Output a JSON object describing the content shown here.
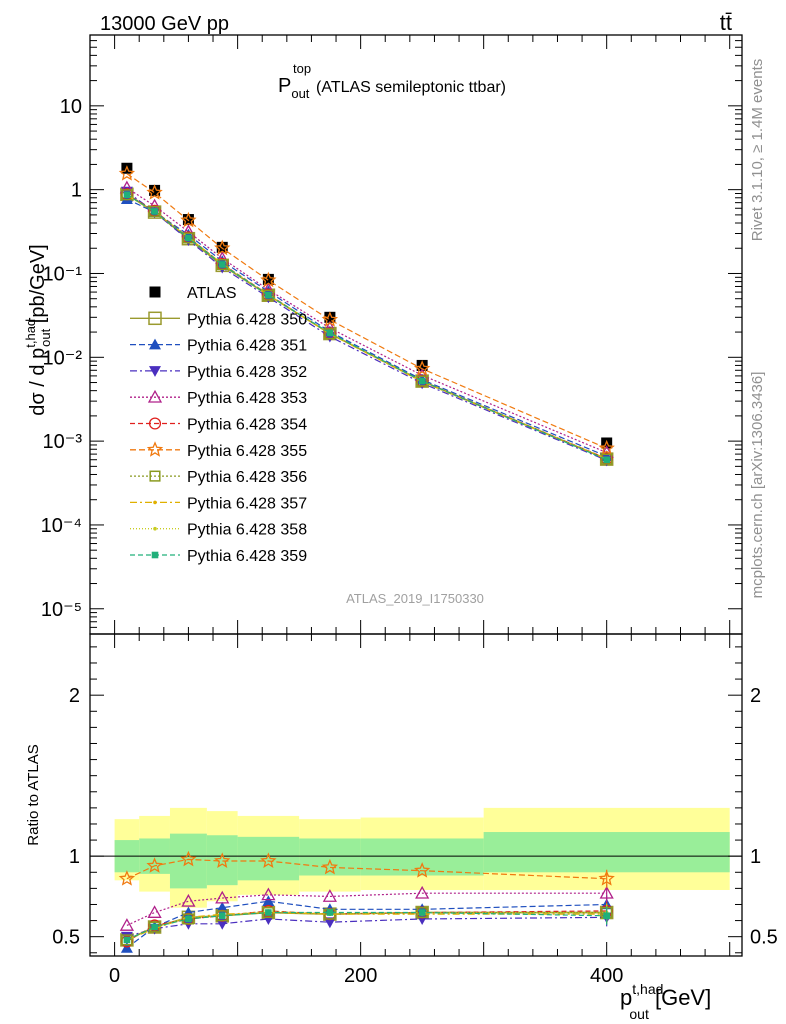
{
  "header": {
    "left": "13000 GeV pp",
    "right": "tt̄"
  },
  "side_texts": {
    "rivet": "Rivet 3.1.10, ≥ 1.4M events",
    "mcplots": "mcplots.cern.ch [arXiv:1306.3436]"
  },
  "watermark": "ATLAS_2019_I1750330",
  "chart_data": [
    {
      "panel": "main",
      "type": "scatter",
      "title": {
        "main": "P",
        "sup": "top",
        "sub": "out",
        "rest": " (ATLAS semileptonic ttbar)"
      },
      "ylabel": {
        "pre": "dσ / d p",
        "sup": "t,had",
        "sub": "out",
        "post": " [pb/GeV]"
      },
      "yscale": "log",
      "ylim": [
        5e-06,
        70
      ],
      "xlim": [
        -20,
        510
      ],
      "y_tick_labels": [
        "10",
        "1",
        "10⁻¹",
        "10⁻²",
        "10⁻³",
        "10⁻⁴",
        "10⁻⁵"
      ],
      "y_tick_values": [
        10,
        1,
        0.1,
        0.01,
        0.001,
        0.0001,
        1e-05
      ],
      "legend_position": "middle-left",
      "x": [
        10,
        32.5,
        60,
        87.5,
        125,
        175,
        250,
        400
      ],
      "x_edges": [
        0,
        20,
        45,
        75,
        100,
        150,
        200,
        300,
        500
      ],
      "series": [
        {
          "name": "ATLAS",
          "color": "#000000",
          "marker": "square-filled",
          "dash": "",
          "values": [
            1.8,
            0.98,
            0.44,
            0.205,
            0.085,
            0.03,
            0.008,
            0.00095
          ]
        },
        {
          "name": "Pythia 6.428 350",
          "color": "#9a9a2e",
          "marker": "square-open",
          "dash": "",
          "values": [
            0.88,
            0.54,
            0.26,
            0.125,
            0.055,
            0.0192,
            0.0052,
            0.00061
          ]
        },
        {
          "name": "Pythia 6.428 351",
          "color": "#1f4fbf",
          "marker": "triangle-up",
          "dash": "6,3",
          "values": [
            0.77,
            0.54,
            0.29,
            0.14,
            0.061,
            0.0202,
            0.0054,
            0.00066
          ]
        },
        {
          "name": "Pythia 6.428 352",
          "color": "#4a2fbf",
          "marker": "triangle-down",
          "dash": "7,3,2,3",
          "values": [
            0.95,
            0.54,
            0.25,
            0.118,
            0.052,
            0.0177,
            0.0049,
            0.00059
          ]
        },
        {
          "name": "Pythia 6.428 353",
          "color": "#b0208a",
          "marker": "triangle-open",
          "dash": "2,2",
          "values": [
            1.05,
            0.64,
            0.315,
            0.151,
            0.064,
            0.0223,
            0.0061,
            0.00073
          ]
        },
        {
          "name": "Pythia 6.428 354",
          "color": "#e0201e",
          "marker": "circle-open",
          "dash": "5,3",
          "values": [
            0.88,
            0.56,
            0.27,
            0.13,
            0.056,
            0.0192,
            0.0052,
            0.00062
          ]
        },
        {
          "name": "Pythia 6.428 355",
          "color": "#f07a10",
          "marker": "star-open",
          "dash": "6,3",
          "values": [
            1.55,
            0.92,
            0.43,
            0.2,
            0.083,
            0.028,
            0.0073,
            0.00082
          ]
        },
        {
          "name": "Pythia 6.428 356",
          "color": "#8a9a20",
          "marker": "square-open-small",
          "dash": "2,2",
          "values": [
            0.87,
            0.55,
            0.265,
            0.128,
            0.055,
            0.0191,
            0.0052,
            0.00061
          ]
        },
        {
          "name": "Pythia 6.428 357",
          "color": "#e0b000",
          "marker": "dot",
          "dash": "7,3,2,3",
          "values": [
            0.86,
            0.54,
            0.27,
            0.13,
            0.055,
            0.019,
            0.0051,
            0.00061
          ]
        },
        {
          "name": "Pythia 6.428 358",
          "color": "#c8cc20",
          "marker": "dot",
          "dash": "1,2",
          "values": [
            0.86,
            0.55,
            0.27,
            0.128,
            0.056,
            0.0193,
            0.0052,
            0.00062
          ]
        },
        {
          "name": "Pythia 6.428 359",
          "color": "#20b07a",
          "marker": "square-small",
          "dash": "5,3",
          "values": [
            0.87,
            0.55,
            0.265,
            0.128,
            0.055,
            0.0195,
            0.0052,
            0.0006
          ]
        }
      ]
    },
    {
      "panel": "ratio",
      "type": "scatter",
      "ylabel": "Ratio to ATLAS",
      "xlabel": {
        "pre": "p",
        "sup": "t,had",
        "sub": "out",
        "post": " [GeV]"
      },
      "ylim": [
        0.38,
        2.38
      ],
      "xlim": [
        -20,
        510
      ],
      "x_ticks": [
        0,
        200,
        400
      ],
      "y_ticks": [
        0.5,
        1,
        2
      ],
      "x": [
        10,
        32.5,
        60,
        87.5,
        125,
        175,
        250,
        400
      ],
      "uncertainty_bands": {
        "inner": {
          "color": "#99ee99",
          "low": [
            0.9,
            0.89,
            0.8,
            0.82,
            0.85,
            0.88,
            0.88,
            0.9
          ],
          "high": [
            1.1,
            1.11,
            1.14,
            1.13,
            1.12,
            1.11,
            1.11,
            1.15
          ]
        },
        "outer": {
          "color": "#ffff99",
          "low": [
            0.85,
            0.78,
            0.68,
            0.72,
            0.76,
            0.78,
            0.79,
            0.79
          ],
          "high": [
            1.23,
            1.25,
            1.3,
            1.28,
            1.25,
            1.23,
            1.24,
            1.3
          ]
        }
      },
      "series": [
        {
          "name": "Pythia 6.428 350",
          "values": [
            0.48,
            0.56,
            0.62,
            0.63,
            0.65,
            0.64,
            0.65,
            0.65
          ]
        },
        {
          "name": "Pythia 6.428 351",
          "values": [
            0.43,
            0.56,
            0.65,
            0.68,
            0.72,
            0.67,
            0.67,
            0.7
          ]
        },
        {
          "name": "Pythia 6.428 352",
          "values": [
            0.5,
            0.55,
            0.58,
            0.58,
            0.61,
            0.59,
            0.61,
            0.62
          ]
        },
        {
          "name": "Pythia 6.428 353",
          "values": [
            0.57,
            0.65,
            0.72,
            0.74,
            0.76,
            0.75,
            0.77,
            0.77
          ]
        },
        {
          "name": "Pythia 6.428 354",
          "values": [
            0.47,
            0.57,
            0.61,
            0.63,
            0.66,
            0.64,
            0.65,
            0.66
          ]
        },
        {
          "name": "Pythia 6.428 355",
          "values": [
            0.86,
            0.94,
            0.98,
            0.97,
            0.97,
            0.93,
            0.91,
            0.86
          ]
        },
        {
          "name": "Pythia 6.428 356",
          "values": [
            0.48,
            0.56,
            0.61,
            0.63,
            0.65,
            0.64,
            0.65,
            0.65
          ]
        },
        {
          "name": "Pythia 6.428 357",
          "values": [
            0.48,
            0.55,
            0.62,
            0.64,
            0.65,
            0.64,
            0.64,
            0.64
          ]
        },
        {
          "name": "Pythia 6.428 358",
          "values": [
            0.48,
            0.56,
            0.62,
            0.63,
            0.66,
            0.64,
            0.65,
            0.65
          ]
        },
        {
          "name": "Pythia 6.428 359",
          "values": [
            0.48,
            0.56,
            0.61,
            0.63,
            0.65,
            0.65,
            0.65,
            0.63
          ]
        }
      ]
    }
  ]
}
